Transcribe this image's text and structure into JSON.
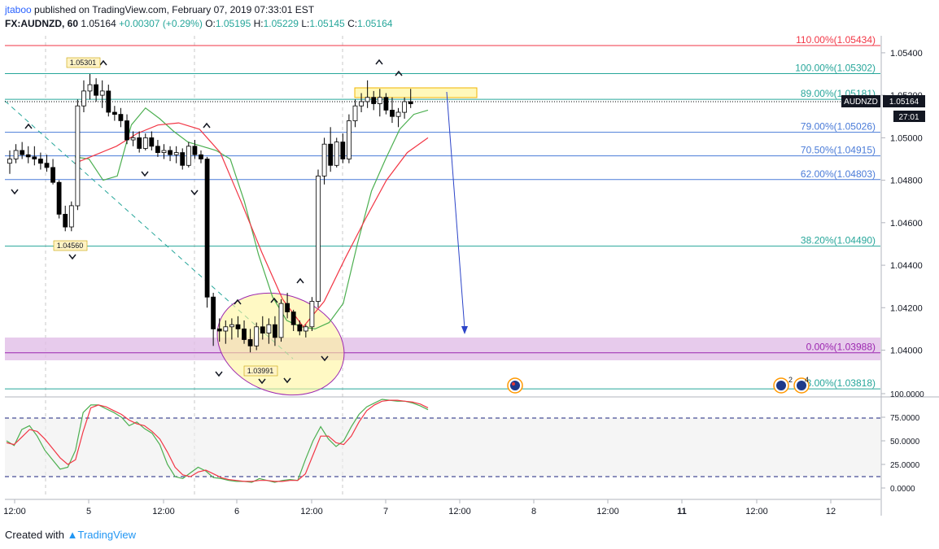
{
  "header": {
    "user": "jtaboo",
    "published": "published on TradingView.com, February 07, 2019 07:33:01 EST",
    "symbol": "FX:AUDNZD, 60",
    "last": "1.05164",
    "change": "+0.00307 (+0.29%)",
    "o_label": "O:",
    "o": "1.05195",
    "h_label": "H:",
    "h": "1.05229",
    "l_label": "L:",
    "l": "1.05145",
    "c_label": "C:",
    "c": "1.05164"
  },
  "footer": {
    "created": "Created with",
    "brand": "TradingView"
  },
  "colors": {
    "up": "#ffffff",
    "down": "#000000",
    "ma_fast": "#4caf50",
    "ma_slow": "#f23645",
    "fib": "#26a69a",
    "fib_blue": "#4a7bd8",
    "zone": "#e1bee7",
    "ellipse_fill": "#fff59d",
    "arrow": "#2c44c8",
    "price_tag": "#131722"
  },
  "price_axis_ticks": [
    "1.05400",
    "1.05200",
    "1.05000",
    "1.04800",
    "1.04600",
    "1.04400",
    "1.04200",
    "1.04000"
  ],
  "osc_axis_ticks": [
    "100.0000",
    "75.0000",
    "50.0000",
    "25.0000",
    "0.0000"
  ],
  "time_axis_ticks": [
    "12:00",
    "5",
    "12:00",
    "6",
    "12:00",
    "7",
    "12:00",
    "8",
    "12:00",
    "11",
    "12:00",
    "12"
  ],
  "price_tag": {
    "symbol": "AUDNZD",
    "price": "1.05164",
    "countdown": "27:01"
  },
  "annotations": {
    "high1": "1.05301",
    "low1": "1.04560",
    "low2": "1.03991",
    "event_count_a": "2",
    "event_count_b": "4"
  },
  "chart_data": {
    "type": "line",
    "title": "FX:AUDNZD, 60",
    "ylim": [
      1.0378,
      1.0548
    ],
    "fib_levels": [
      {
        "label": "110.00%(1.05434)",
        "value": 1.05434
      },
      {
        "label": "100.00%(1.05302)",
        "value": 1.05302
      },
      {
        "label": "89.00%(1.05181)",
        "value": 1.05181
      },
      {
        "label": "79.00%(1.05026)",
        "value": 1.05026
      },
      {
        "label": "70.50%(1.04915)",
        "value": 1.04915
      },
      {
        "label": "62.00%(1.04803)",
        "value": 1.04803
      },
      {
        "label": "38.20%(1.04490)",
        "value": 1.0449
      },
      {
        "label": "0.00%(1.03988)",
        "value": 1.03988
      },
      {
        "label": "-13.00%(1.03818)",
        "value": 1.03818
      }
    ],
    "series": [
      {
        "name": "AUDNZD",
        "ohlc": [
          [
            1.0488,
            1.0494,
            1.0483,
            1.049
          ],
          [
            1.049,
            1.0497,
            1.0488,
            1.0494
          ],
          [
            1.0494,
            1.0498,
            1.049,
            1.0492
          ],
          [
            1.0492,
            1.0496,
            1.0488,
            1.0491
          ],
          [
            1.0491,
            1.0496,
            1.0487,
            1.049
          ],
          [
            1.049,
            1.0493,
            1.0485,
            1.0488
          ],
          [
            1.0488,
            1.0492,
            1.0484,
            1.0486
          ],
          [
            1.0486,
            1.049,
            1.0478,
            1.0479
          ],
          [
            1.0479,
            1.048,
            1.0462,
            1.0464
          ],
          [
            1.0464,
            1.0468,
            1.0456,
            1.0458
          ],
          [
            1.0458,
            1.047,
            1.0456,
            1.0468
          ],
          [
            1.0468,
            1.0518,
            1.0466,
            1.0515
          ],
          [
            1.0515,
            1.0527,
            1.0512,
            1.0522
          ],
          [
            1.0522,
            1.053,
            1.0518,
            1.0525
          ],
          [
            1.0525,
            1.0528,
            1.0517,
            1.052
          ],
          [
            1.052,
            1.0527,
            1.0514,
            1.0522
          ],
          [
            1.0522,
            1.0525,
            1.051,
            1.0512
          ],
          [
            1.0512,
            1.0515,
            1.0508,
            1.0511
          ],
          [
            1.0511,
            1.0514,
            1.0505,
            1.0508
          ],
          [
            1.0508,
            1.0511,
            1.0497,
            1.0499
          ],
          [
            1.0499,
            1.0503,
            1.0496,
            1.05
          ],
          [
            1.05,
            1.0503,
            1.0493,
            1.0495
          ],
          [
            1.0495,
            1.0502,
            1.0494,
            1.05
          ],
          [
            1.05,
            1.0503,
            1.0494,
            1.0496
          ],
          [
            1.0496,
            1.0499,
            1.0491,
            1.0493
          ],
          [
            1.0493,
            1.0497,
            1.049,
            1.0494
          ],
          [
            1.0494,
            1.0496,
            1.0489,
            1.0492
          ],
          [
            1.0492,
            1.0496,
            1.0488,
            1.0493
          ],
          [
            1.0493,
            1.0495,
            1.0485,
            1.0487
          ],
          [
            1.0487,
            1.0498,
            1.0486,
            1.0496
          ],
          [
            1.0496,
            1.0499,
            1.049,
            1.0492
          ],
          [
            1.0492,
            1.0494,
            1.0488,
            1.049
          ],
          [
            1.049,
            1.0491,
            1.042,
            1.0425
          ],
          [
            1.0425,
            1.0427,
            1.0402,
            1.041
          ],
          [
            1.041,
            1.0415,
            1.0404,
            1.0409
          ],
          [
            1.0409,
            1.0414,
            1.0403,
            1.0411
          ],
          [
            1.0411,
            1.0415,
            1.0405,
            1.0412
          ],
          [
            1.0412,
            1.0416,
            1.0406,
            1.041
          ],
          [
            1.041,
            1.0414,
            1.0403,
            1.0405
          ],
          [
            1.0405,
            1.041,
            1.0399,
            1.0402
          ],
          [
            1.0402,
            1.0413,
            1.04,
            1.0411
          ],
          [
            1.0411,
            1.0416,
            1.0405,
            1.0408
          ],
          [
            1.0408,
            1.0415,
            1.0403,
            1.0412
          ],
          [
            1.0412,
            1.0416,
            1.0402,
            1.0406
          ],
          [
            1.0406,
            1.0424,
            1.0404,
            1.0422
          ],
          [
            1.0422,
            1.0427,
            1.0415,
            1.0418
          ],
          [
            1.0418,
            1.0419,
            1.0409,
            1.0412
          ],
          [
            1.0412,
            1.0414,
            1.0407,
            1.0409
          ],
          [
            1.0409,
            1.0412,
            1.0406,
            1.0411
          ],
          [
            1.0411,
            1.0425,
            1.0409,
            1.0423
          ],
          [
            1.0423,
            1.0485,
            1.042,
            1.0482
          ],
          [
            1.0482,
            1.05,
            1.0478,
            1.0497
          ],
          [
            1.0497,
            1.0505,
            1.0484,
            1.0487
          ],
          [
            1.0487,
            1.05,
            1.0486,
            1.0498
          ],
          [
            1.0498,
            1.0502,
            1.0488,
            1.049
          ],
          [
            1.049,
            1.0511,
            1.0488,
            1.0508
          ],
          [
            1.0508,
            1.0518,
            1.0505,
            1.0515
          ],
          [
            1.0515,
            1.0521,
            1.0512,
            1.0517
          ],
          [
            1.0517,
            1.0527,
            1.0514,
            1.0519
          ],
          [
            1.0519,
            1.0522,
            1.0513,
            1.0516
          ],
          [
            1.0516,
            1.0523,
            1.051,
            1.0519
          ],
          [
            1.0519,
            1.0521,
            1.0511,
            1.0513
          ],
          [
            1.0513,
            1.0519,
            1.0507,
            1.051
          ],
          [
            1.051,
            1.0514,
            1.0505,
            1.0512
          ],
          [
            1.0512,
            1.0519,
            1.0509,
            1.0517
          ],
          [
            1.0517,
            1.0523,
            1.0514,
            1.0516
          ]
        ]
      },
      {
        "name": "MA fast",
        "values": [
          1.0491,
          1.049,
          1.048,
          1.0482,
          1.0506,
          1.0514,
          1.0509,
          1.0503,
          1.0498,
          1.0496,
          1.0494,
          1.049,
          1.047,
          1.0445,
          1.0425,
          1.0414,
          1.0411,
          1.041,
          1.0413,
          1.0422,
          1.045,
          1.0475,
          1.049,
          1.0504,
          1.0511,
          1.0513
        ]
      },
      {
        "name": "MA slow",
        "values": [
          1.0488,
          1.0492,
          1.0496,
          1.0502,
          1.0506,
          1.0507,
          1.0504,
          1.0493,
          1.047,
          1.0446,
          1.0424,
          1.0411,
          1.0423,
          1.0443,
          1.0462,
          1.048,
          1.0493,
          1.05
        ]
      },
      {
        "name": "Stoch %K",
        "values": [
          50,
          45,
          62,
          66,
          55,
          40,
          30,
          20,
          22,
          40,
          80,
          88,
          88,
          84,
          80,
          75,
          66,
          70,
          63,
          58,
          46,
          25,
          12,
          10,
          16,
          22,
          18,
          11,
          10,
          8,
          7,
          7,
          6,
          10,
          8,
          6,
          8,
          9,
          8,
          30,
          50,
          65,
          52,
          44,
          50,
          65,
          78,
          86,
          90,
          94,
          93,
          92,
          92,
          90,
          87,
          83
        ]
      },
      {
        "name": "Stoch %D",
        "values": [
          48,
          46,
          54,
          62,
          60,
          52,
          42,
          32,
          25,
          30,
          60,
          85,
          88,
          86,
          82,
          78,
          72,
          68,
          66,
          60,
          52,
          38,
          22,
          14,
          12,
          17,
          19,
          15,
          11,
          9,
          8,
          7,
          7,
          8,
          8,
          7,
          7,
          8,
          8,
          15,
          35,
          55,
          55,
          48,
          46,
          55,
          70,
          82,
          88,
          92,
          93,
          93,
          92,
          91,
          89,
          85
        ]
      }
    ]
  }
}
